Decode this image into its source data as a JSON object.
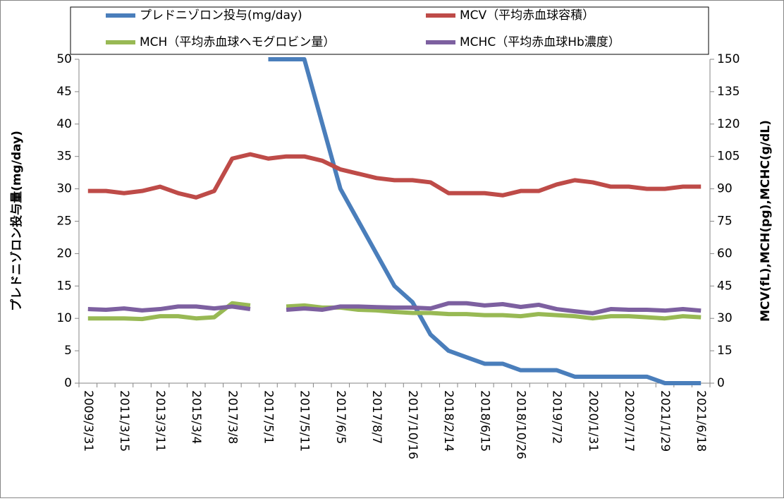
{
  "chart_data": {
    "type": "line",
    "categories": [
      "2009/3/31",
      null,
      "2011/3/15",
      null,
      "2013/3/11",
      null,
      "2015/3/4",
      null,
      "2017/3/8",
      null,
      "2017/5/1",
      null,
      "2017/5/11",
      null,
      "2017/6/5",
      null,
      "2017/8/7",
      null,
      "2017/10/16",
      null,
      "2018/2/14",
      null,
      "2018/6/15",
      null,
      "2018/10/26",
      null,
      "2019/7/2",
      null,
      "2020/1/31",
      null,
      "2020/7/17",
      null,
      "2021/1/29",
      null,
      "2021/6/18"
    ],
    "series": [
      {
        "name": "プレドニゾロン投与(mg/day)",
        "color": "#4a7ebb",
        "axis": "y",
        "values": [
          null,
          null,
          null,
          null,
          null,
          null,
          null,
          null,
          null,
          null,
          50,
          50,
          50,
          40,
          30,
          25,
          20,
          15,
          12.5,
          7.5,
          5,
          4,
          3,
          3,
          2,
          2,
          2,
          1,
          1,
          1,
          1,
          1,
          0,
          0,
          0
        ]
      },
      {
        "name": "MCV（平均赤血球容積）",
        "color": "#be4b48",
        "axis": "y2",
        "values": [
          89,
          89,
          88,
          89,
          91,
          88,
          86,
          89,
          104,
          106,
          104,
          105,
          105,
          103,
          99,
          97,
          95,
          94,
          94,
          93,
          88,
          88,
          88,
          87,
          89,
          89,
          92,
          94,
          93,
          91,
          91,
          90,
          90,
          91,
          91
        ]
      },
      {
        "name": "MCH（平均赤血球ヘモグロビン量）",
        "color": "#98b954",
        "axis": "y2",
        "values": [
          30,
          30,
          30,
          29.7,
          31,
          31,
          30,
          30.5,
          37,
          36,
          null,
          35.5,
          36,
          35,
          35,
          34,
          33.7,
          33,
          32.5,
          32.5,
          32,
          32,
          31.5,
          31.5,
          31,
          32,
          31.5,
          31,
          30,
          31,
          31,
          30.5,
          30,
          31,
          30.5
        ]
      },
      {
        "name": "MCHC（平均赤血球Hb濃度）",
        "color": "#7d60a0",
        "axis": "y2",
        "values": [
          34.3,
          34,
          34.6,
          33.7,
          34.3,
          35.5,
          35.5,
          34.6,
          35.5,
          34.3,
          null,
          34,
          34.6,
          34,
          35.5,
          35.5,
          35.2,
          35,
          35,
          34.6,
          37,
          37,
          36,
          36.6,
          35.3,
          36.3,
          34.3,
          33.3,
          32.4,
          34.3,
          34,
          34,
          33.6,
          34.3,
          33.6
        ]
      }
    ],
    "ylabel": "プレドニゾロン投与量(mg/day)",
    "y2label": "MCV(fL),MCH(pg),MCHC(g/dL)",
    "ylim": [
      0,
      50
    ],
    "yticks": [
      0,
      5,
      10,
      15,
      20,
      25,
      30,
      35,
      40,
      45,
      50
    ],
    "y2lim": [
      0,
      150
    ],
    "y2ticks": [
      0,
      15,
      30,
      45,
      60,
      75,
      90,
      105,
      120,
      135,
      150
    ],
    "legend": "top"
  }
}
